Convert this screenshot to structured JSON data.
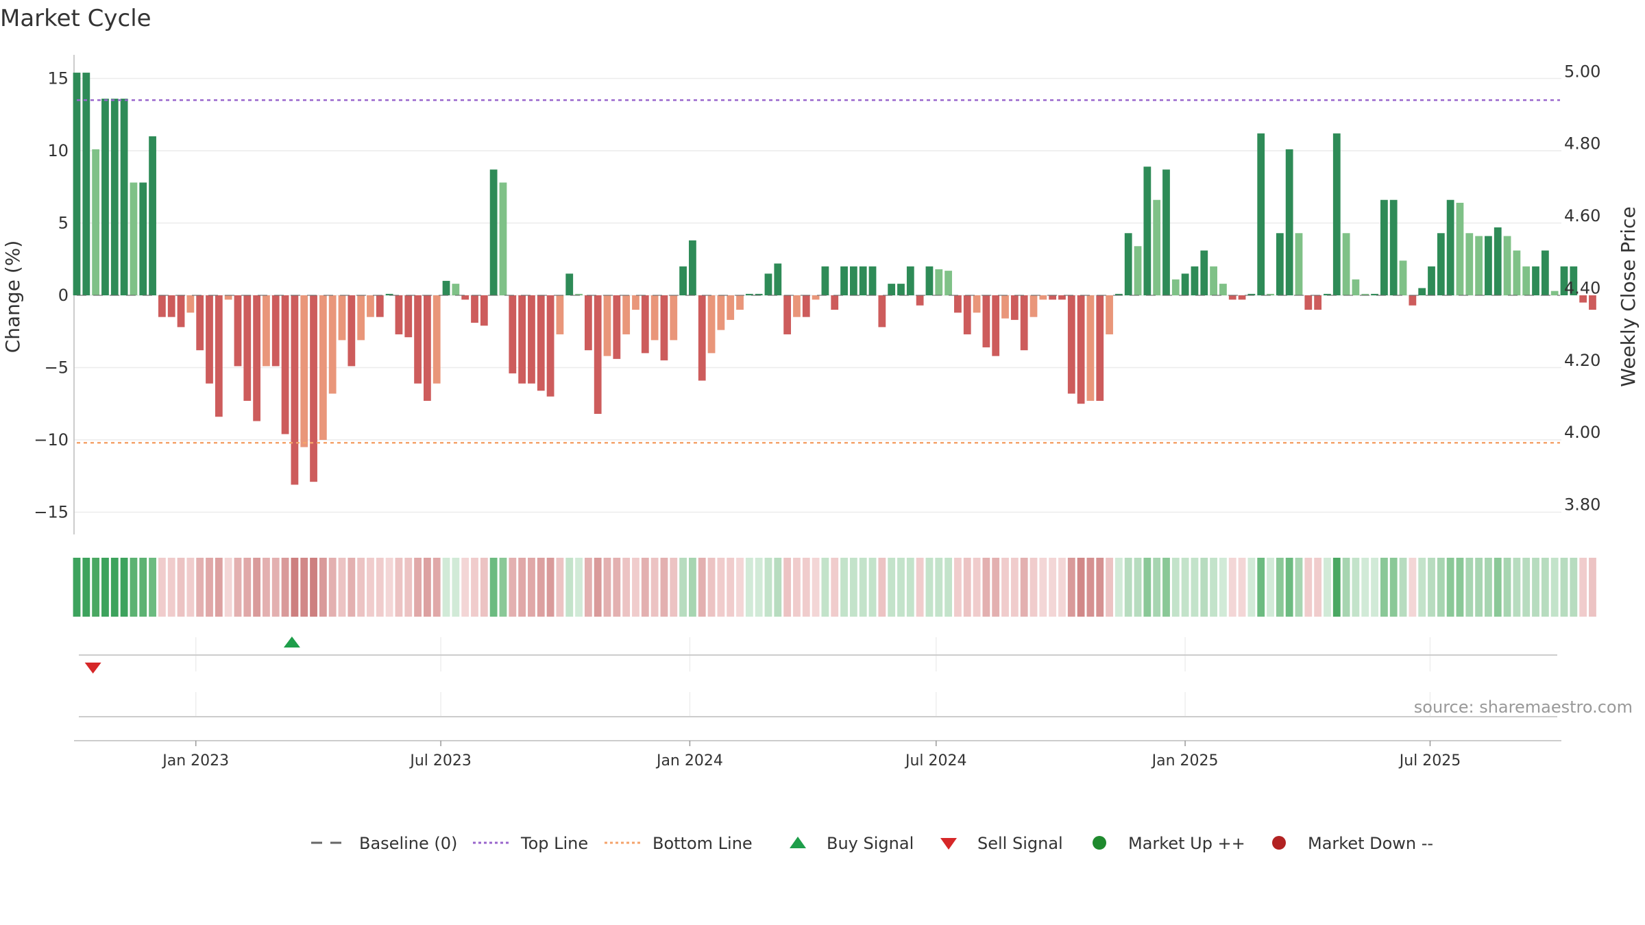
{
  "chart_data": {
    "title": "Market Cycle",
    "type": "bar",
    "ylabel_left": "Change (%)",
    "ylabel_right": "Weekly Close Price",
    "ylim_left": [
      -17,
      17
    ],
    "yticks_left": [
      15,
      10,
      5,
      0,
      -5,
      -10,
      -15
    ],
    "ytick_labels_left": [
      "15",
      "10",
      "5",
      "0",
      "−5",
      "−10",
      "−15"
    ],
    "ylim_right": [
      3.71,
      5.05
    ],
    "yticks_right": [
      5.0,
      4.8,
      4.6,
      4.4,
      4.2,
      4.0,
      3.8
    ],
    "ytick_labels_right": [
      "5.00",
      "4.80",
      "4.60",
      "4.40",
      "4.20",
      "4.00",
      "3.80"
    ],
    "x_range": [
      "2022-10-03",
      "2025-10-06"
    ],
    "x_ticks": [
      {
        "date": "2023-01-01",
        "label": "Jan 2023"
      },
      {
        "date": "2023-07-01",
        "label": "Jul 2023"
      },
      {
        "date": "2024-01-01",
        "label": "Jan 2024"
      },
      {
        "date": "2024-07-01",
        "label": "Jul 2024"
      },
      {
        "date": "2025-01-01",
        "label": "Jan 2025"
      },
      {
        "date": "2025-07-01",
        "label": "Jul 2025"
      }
    ],
    "top_line": 13.5,
    "bottom_line": -10.2,
    "baseline": 0,
    "first_week": "2022-10-03",
    "values": [
      15.4,
      15.4,
      10.1,
      13.6,
      13.6,
      13.6,
      7.8,
      7.8,
      11.0,
      -1.5,
      -1.5,
      -2.2,
      -1.2,
      -3.8,
      -6.1,
      -8.4,
      -0.3,
      -4.9,
      -7.3,
      -8.7,
      -4.9,
      -4.9,
      -9.6,
      -13.1,
      -10.5,
      -12.9,
      -10.0,
      -6.8,
      -3.1,
      -4.9,
      -3.1,
      -1.5,
      -1.5,
      0.1,
      -2.7,
      -2.9,
      -6.1,
      -7.3,
      -6.1,
      1.0,
      0.8,
      -0.3,
      -1.9,
      -2.1,
      8.7,
      7.8,
      -5.4,
      -6.1,
      -6.1,
      -6.6,
      -7.0,
      -2.7,
      1.5,
      0.1,
      -3.8,
      -8.2,
      -4.2,
      -4.4,
      -2.7,
      -1.0,
      -4.0,
      -3.1,
      -4.5,
      -3.1,
      2.0,
      3.8,
      -5.9,
      -4.0,
      -2.4,
      -1.7,
      -1.0,
      0.1,
      0.1,
      1.5,
      2.2,
      -2.7,
      -1.5,
      -1.5,
      -0.3,
      2.0,
      -1.0,
      2.0,
      2.0,
      2.0,
      2.0,
      -2.2,
      0.8,
      0.8,
      2.0,
      -0.7,
      2.0,
      1.8,
      1.7,
      -1.2,
      -2.7,
      -1.2,
      -3.6,
      -4.2,
      -1.6,
      -1.7,
      -3.8,
      -1.5,
      -0.3,
      -0.3,
      -0.3,
      -6.8,
      -7.5,
      -7.3,
      -7.3,
      -2.7,
      0.1,
      4.3,
      3.4,
      8.9,
      6.6,
      8.7,
      1.1,
      1.5,
      2.0,
      3.1,
      2.0,
      0.8,
      -0.3,
      -0.3,
      0.1,
      11.2,
      0.1,
      4.3,
      10.1,
      4.3,
      -1.0,
      -1.0,
      0.1,
      11.2,
      4.3,
      1.1,
      0.1,
      0.1,
      6.6,
      6.6,
      2.4,
      -0.7,
      0.5,
      2.0,
      4.3,
      6.6,
      6.4,
      4.3,
      4.1,
      4.1,
      4.7,
      4.1,
      3.1,
      2.0,
      2.0,
      3.1,
      0.3,
      2.0,
      2.0,
      -0.5,
      -1.0
    ],
    "cycle_strip": [
      "#3da35d",
      "#3da35d",
      "#4aa862",
      "#3da35d",
      "#3da35d",
      "#3da35d",
      "#5cb272",
      "#5cb272",
      "#6cbb80",
      "#f0cccc",
      "#f0cccc",
      "#ecc3c3",
      "#f0cccc",
      "#e3b0b0",
      "#e0a8a8",
      "#dca0a0",
      "#f3d6d6",
      "#e3b0b0",
      "#e0a8a8",
      "#d99a9a",
      "#e3b0b0",
      "#e3b0b0",
      "#d99a9a",
      "#cd7f7f",
      "#d18888",
      "#cd7f7f",
      "#d99a9a",
      "#e3b0b0",
      "#ecc3c3",
      "#e3b0b0",
      "#ecc3c3",
      "#f0cccc",
      "#f0cccc",
      "#f3d6d6",
      "#ecc3c3",
      "#ecc3c3",
      "#e0a8a8",
      "#dca0a0",
      "#e0a8a8",
      "#d1ead7",
      "#d1ead7",
      "#f3d6d6",
      "#f0cccc",
      "#ecc3c3",
      "#6cbb80",
      "#8ac897",
      "#e3b0b0",
      "#e0a8a8",
      "#e0a8a8",
      "#dca0a0",
      "#d99a9a",
      "#ecc3c3",
      "#c3e3ca",
      "#d1ead7",
      "#e3b0b0",
      "#d99a9a",
      "#e3b0b0",
      "#e3b0b0",
      "#ecc3c3",
      "#f0cccc",
      "#e3b0b0",
      "#ecc3c3",
      "#e3b0b0",
      "#ecc3c3",
      "#b7dcbf",
      "#a7d5b1",
      "#e3b0b0",
      "#ecc3c3",
      "#f0cccc",
      "#f0cccc",
      "#f3d6d6",
      "#d1ead7",
      "#d1ead7",
      "#c3e3ca",
      "#b7dcbf",
      "#ecc3c3",
      "#f0cccc",
      "#f0cccc",
      "#f3d6d6",
      "#c3e3ca",
      "#f0cccc",
      "#c3e3ca",
      "#c3e3ca",
      "#c3e3ca",
      "#c3e3ca",
      "#ecc3c3",
      "#c3e3ca",
      "#c3e3ca",
      "#c3e3ca",
      "#f0cccc",
      "#c3e3ca",
      "#c3e3ca",
      "#c3e3ca",
      "#f0cccc",
      "#ecc3c3",
      "#f0cccc",
      "#e3b0b0",
      "#e3b0b0",
      "#f0cccc",
      "#f0cccc",
      "#e3b0b0",
      "#f0cccc",
      "#f3d6d6",
      "#f3d6d6",
      "#f3d6d6",
      "#d99a9a",
      "#d18888",
      "#d59191",
      "#d59191",
      "#ecc3c3",
      "#d1ead7",
      "#b7dcbf",
      "#b7dcbf",
      "#8ac897",
      "#a7d5b1",
      "#8ac897",
      "#c3e3ca",
      "#c3e3ca",
      "#c3e3ca",
      "#b7dcbf",
      "#c3e3ca",
      "#d1ead7",
      "#f3d6d6",
      "#f3d6d6",
      "#d1ead7",
      "#6cbb80",
      "#d1ead7",
      "#8ac897",
      "#6cbb80",
      "#a7d5b1",
      "#f0cccc",
      "#f0cccc",
      "#d1ead7",
      "#4aa862",
      "#a7d5b1",
      "#c3e3ca",
      "#d1ead7",
      "#d1ead7",
      "#8ac897",
      "#8ac897",
      "#b7dcbf",
      "#f3d6d6",
      "#c3e3ca",
      "#b7dcbf",
      "#a7d5b1",
      "#8ac897",
      "#8ac897",
      "#a7d5b1",
      "#a7d5b1",
      "#a7d5b1",
      "#8ac897",
      "#a7d5b1",
      "#b7dcbf",
      "#b7dcbf",
      "#b7dcbf",
      "#b7dcbf",
      "#c3e3ca",
      "#b7dcbf",
      "#b7dcbf",
      "#f0cccc",
      "#ecc3c3"
    ],
    "buy_signals": [
      {
        "date": "2023-03-13"
      }
    ],
    "sell_signals": [
      {
        "date": "2022-10-17"
      }
    ],
    "legend": [
      {
        "label": "Baseline (0)",
        "symbol": "dash-line",
        "color": "#666666"
      },
      {
        "label": "Top Line",
        "symbol": "dotted-line",
        "color": "#9966cc"
      },
      {
        "label": "Bottom Line",
        "symbol": "dotted-line",
        "color": "#f4a36b"
      },
      {
        "label": "Buy Signal",
        "symbol": "triangle-up",
        "color": "#1e9e4a"
      },
      {
        "label": "Sell Signal",
        "symbol": "triangle-down",
        "color": "#d62728"
      },
      {
        "label": "Market Up ++",
        "symbol": "circle",
        "color": "#1f8a2e"
      },
      {
        "label": "Market Down --",
        "symbol": "circle",
        "color": "#b22222"
      }
    ],
    "source": "source: sharemaestro.com",
    "colors": {
      "up_strong": "#2e8b57",
      "up_light": "#7fc187",
      "down_strong": "#cd5c5c",
      "down_light": "#e9967a",
      "top_line": "#9966cc",
      "bottom_line": "#f4a36b",
      "buy": "#1e9e4a",
      "sell": "#d62728"
    }
  }
}
